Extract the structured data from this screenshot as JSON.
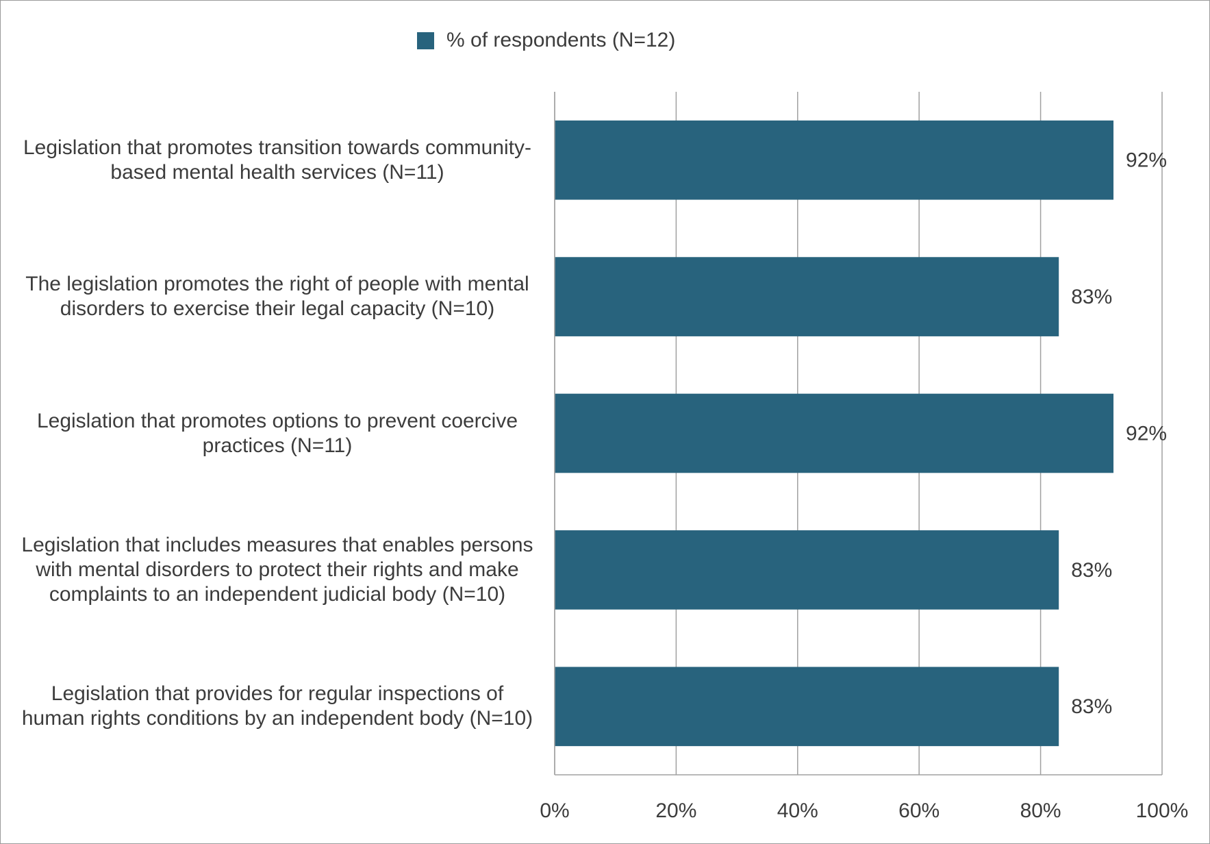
{
  "chart_data": {
    "type": "bar",
    "orientation": "horizontal",
    "categories": [
      "Legislation that promotes transition towards community-based mental health services (N=11)",
      "The legislation promotes the right of people with mental disorders to exercise their legal capacity (N=10)",
      "Legislation that promotes options to prevent coercive practices (N=11)",
      "Legislation that includes measures that enables persons with mental disorders to protect their rights and make complaints to an independent judicial body (N=10)",
      "Legislation that provides for regular inspections of human rights conditions by an independent body (N=10)"
    ],
    "series": [
      {
        "name": "% of respondents  (N=12)",
        "color": "#28637d",
        "values": [
          92,
          83,
          92,
          83,
          83
        ],
        "value_labels": [
          "92%",
          "83%",
          "92%",
          "83%",
          "83%"
        ]
      }
    ],
    "xlim": [
      0,
      100
    ],
    "xticks": [
      {
        "value": 0,
        "label": "0%"
      },
      {
        "value": 20,
        "label": "20%"
      },
      {
        "value": 40,
        "label": "40%"
      },
      {
        "value": 60,
        "label": "60%"
      },
      {
        "value": 80,
        "label": "80%"
      },
      {
        "value": 100,
        "label": "100%"
      }
    ],
    "grid": true,
    "legend": "top"
  }
}
